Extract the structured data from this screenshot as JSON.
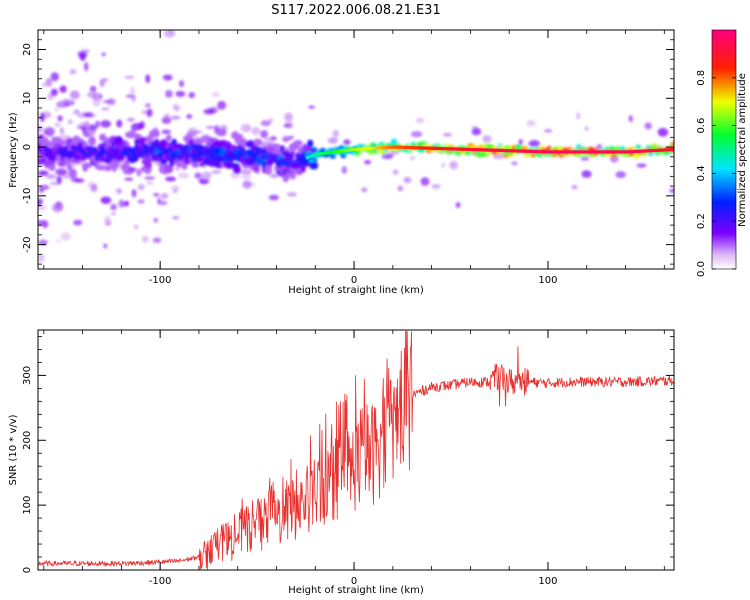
{
  "figure_title": "S117.2022.006.08.21.E31",
  "colors": {
    "snr_line": "#e8302e",
    "axis": "#000000",
    "background": "#ffffff"
  },
  "chart_data": [
    {
      "type": "heatmap",
      "title": "",
      "xlabel": "Height of straight line (km)",
      "ylabel": "Frequency (Hz)",
      "xlim": [
        -163,
        165
      ],
      "ylim": [
        -25,
        24
      ],
      "x_ticks": [
        -100,
        0,
        100
      ],
      "y_ticks": [
        -20,
        -10,
        0,
        10,
        20
      ],
      "colorbar": {
        "label": "Normalized spectral amplitude",
        "range": [
          0,
          1
        ],
        "ticks": [
          "0.0",
          "0.2",
          "0.4",
          "0.6",
          "0.8"
        ],
        "colormap": "rainbow (white-purple-blue-cyan-green-yellow-red-magenta)"
      },
      "ridge": {
        "description": "Dominant spectral line near 0 Hz",
        "x": [
          -160,
          -120,
          -80,
          -40,
          -30,
          -20,
          0,
          20,
          60,
          100,
          140,
          165
        ],
        "frequency": [
          -1,
          -1,
          -1,
          -2.5,
          -3,
          -1.5,
          -0.5,
          0,
          -0.5,
          -1,
          -1,
          -0.5
        ],
        "amplitude": [
          0.25,
          0.3,
          0.35,
          0.35,
          0.3,
          0.45,
          0.6,
          0.75,
          0.85,
          0.9,
          0.9,
          0.85
        ]
      }
    },
    {
      "type": "line",
      "title": "",
      "xlabel": "Height of straight line (km)",
      "ylabel": "SNR (10 * v/v)",
      "xlim": [
        -163,
        165
      ],
      "ylim": [
        0,
        370
      ],
      "x_ticks": [
        -100,
        0,
        100
      ],
      "y_ticks": [
        0,
        100,
        200,
        300
      ],
      "series": [
        {
          "x": [
            -163,
            -140,
            -120,
            -100,
            -90,
            -80,
            -70,
            -60,
            -50,
            -40,
            -30,
            -20,
            -10,
            0,
            5,
            10,
            20,
            30,
            40,
            50,
            60,
            70,
            75,
            80,
            90,
            100,
            110,
            120,
            140,
            165
          ],
          "values": [
            10,
            10,
            10,
            12,
            14,
            20,
            35,
            55,
            70,
            80,
            95,
            115,
            140,
            160,
            180,
            180,
            230,
            270,
            282,
            285,
            290,
            290,
            300,
            290,
            290,
            288,
            290,
            290,
            290,
            292
          ]
        }
      ]
    }
  ]
}
